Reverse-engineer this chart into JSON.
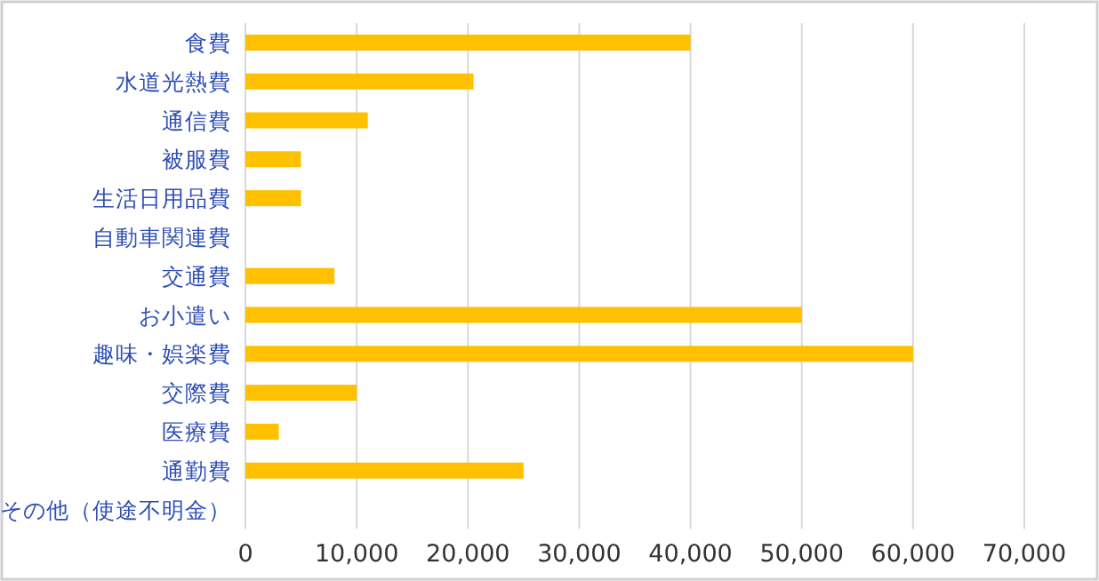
{
  "chart_data": {
    "type": "bar",
    "orientation": "horizontal",
    "categories": [
      "食費",
      "水道光熱費",
      "通信費",
      "被服費",
      "生活日用品費",
      "自動車関連費",
      "交通費",
      "お小遣い",
      "趣味・娯楽費",
      "交際費",
      "医療費",
      "通勤費",
      "その他（使途不明金）"
    ],
    "values": [
      40000,
      20500,
      11000,
      5000,
      5000,
      null,
      8000,
      50000,
      60000,
      10000,
      3000,
      25000,
      null
    ],
    "color": "#ffc000",
    "xlim": [
      0,
      70000
    ],
    "xticks": [
      {
        "value": 0,
        "label": "0"
      },
      {
        "value": 10000,
        "label": "10,000"
      },
      {
        "value": 20000,
        "label": "20,000"
      },
      {
        "value": 30000,
        "label": "30,000"
      },
      {
        "value": 40000,
        "label": "40,000"
      },
      {
        "value": 50000,
        "label": "50,000"
      },
      {
        "value": 60000,
        "label": "60,000"
      },
      {
        "value": 70000,
        "label": "70,000"
      }
    ],
    "grid": "x"
  }
}
